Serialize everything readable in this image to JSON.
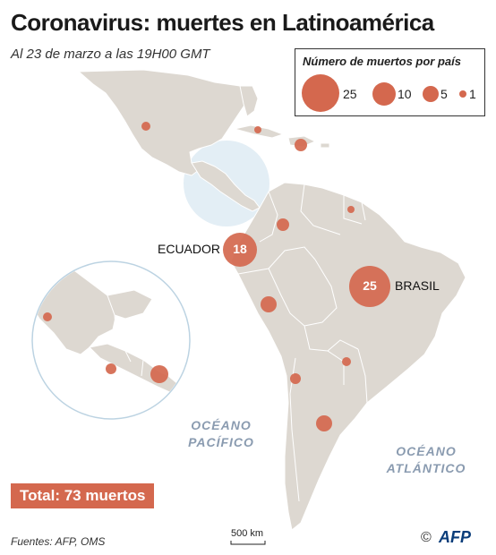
{
  "title": "Coronavirus: muertes en Latinoamérica",
  "subtitle": "Al 23 de marzo a las 19H00 GMT",
  "legend": {
    "title": "Número de muertos por país",
    "items": [
      {
        "value": 25,
        "label": "25"
      },
      {
        "value": 10,
        "label": "10"
      },
      {
        "value": 5,
        "label": "5"
      },
      {
        "value": 1,
        "label": "1"
      }
    ]
  },
  "labels": {
    "ecuador": "ECUADOR",
    "brasil": "BRASIL",
    "ecuador_count": "18",
    "brasil_count": "25"
  },
  "oceans": {
    "pacific_line1": "OCÉANO",
    "pacific_line2": "PACÍFICO",
    "atlantic_line1": "OCÉANO",
    "atlantic_line2": "ATLÁNTICO"
  },
  "total": "Total: 73 muertos",
  "sources": "Fuentes: AFP, OMS",
  "scale": "500 km",
  "copyright": "©",
  "logo": "AFP",
  "colors": {
    "bubble": "#d4684e",
    "land": "#ddd8d1",
    "border": "#ffffff",
    "ocean_text": "#8a9bb0",
    "inset": "#e3eef5"
  }
}
